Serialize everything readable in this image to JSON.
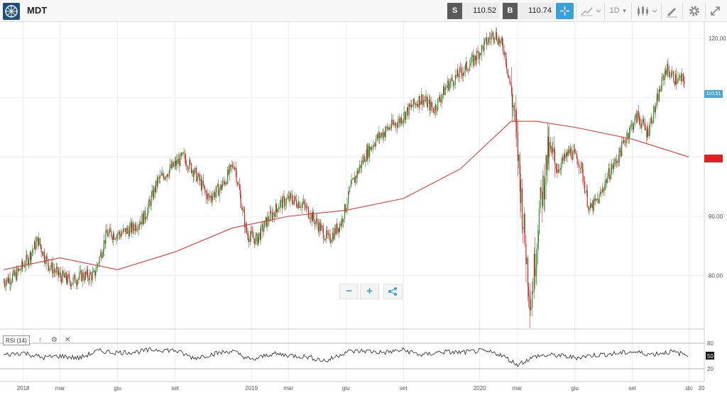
{
  "header": {
    "symbol": "MDT",
    "sell_label": "S",
    "sell_price": "110.52",
    "buy_label": "B",
    "buy_price": "110.74",
    "timeframe": "1D",
    "logo_icon": "company-logo-icon",
    "icons": [
      "crosshair-icon",
      "chart-type-icon",
      "candlestick-icon",
      "draw-icon",
      "gear-icon",
      "expand-icon"
    ]
  },
  "chart_data": {
    "type": "candlestick",
    "series": [
      {
        "name": "price",
        "kind": "candlestick",
        "color_up": "#2e8b2e",
        "color_down": "#c62828"
      },
      {
        "name": "moving-average",
        "kind": "line",
        "color": "#e53935"
      }
    ],
    "y_ticks": [
      "120,00",
      "90,00",
      "80,00"
    ],
    "ylim": [
      73,
      122
    ],
    "x_ticks": [
      "2018",
      "mar",
      "giu",
      "set",
      "2019",
      "mar",
      "giu",
      "set",
      "2020",
      "mar",
      "giu",
      "set",
      "dic",
      "20"
    ],
    "price_path": [
      [
        "2017-12-01",
        79
      ],
      [
        "2017-12-20",
        80
      ],
      [
        "2018-01-10",
        83
      ],
      [
        "2018-01-25",
        86
      ],
      [
        "2018-02-10",
        82
      ],
      [
        "2018-02-28",
        80
      ],
      [
        "2018-03-20",
        79
      ],
      [
        "2018-04-05",
        80
      ],
      [
        "2018-04-25",
        80
      ],
      [
        "2018-05-15",
        87
      ],
      [
        "2018-06-05",
        87
      ],
      [
        "2018-06-25",
        88
      ],
      [
        "2018-07-15",
        90
      ],
      [
        "2018-08-05",
        96
      ],
      [
        "2018-08-25",
        98
      ],
      [
        "2018-09-15",
        100
      ],
      [
        "2018-10-05",
        97
      ],
      [
        "2018-10-25",
        93
      ],
      [
        "2018-11-15",
        95
      ],
      [
        "2018-12-05",
        99
      ],
      [
        "2018-12-25",
        87
      ],
      [
        "2019-01-10",
        86
      ],
      [
        "2019-01-25",
        89
      ],
      [
        "2019-02-15",
        92
      ],
      [
        "2019-03-05",
        93
      ],
      [
        "2019-03-25",
        92
      ],
      [
        "2019-04-15",
        89
      ],
      [
        "2019-05-05",
        86
      ],
      [
        "2019-05-25",
        89
      ],
      [
        "2019-06-10",
        95
      ],
      [
        "2019-07-01",
        100
      ],
      [
        "2019-07-20",
        103
      ],
      [
        "2019-08-10",
        105
      ],
      [
        "2019-08-25",
        106
      ],
      [
        "2019-09-10",
        108
      ],
      [
        "2019-09-30",
        110
      ],
      [
        "2019-10-20",
        108
      ],
      [
        "2019-11-10",
        112
      ],
      [
        "2019-11-30",
        114
      ],
      [
        "2019-12-20",
        116
      ],
      [
        "2020-01-10",
        119
      ],
      [
        "2020-01-25",
        121
      ],
      [
        "2020-02-10",
        118
      ],
      [
        "2020-02-25",
        108
      ],
      [
        "2020-03-05",
        97
      ],
      [
        "2020-03-15",
        84
      ],
      [
        "2020-03-23",
        75
      ],
      [
        "2020-04-05",
        90
      ],
      [
        "2020-04-20",
        101
      ],
      [
        "2020-05-05",
        98
      ],
      [
        "2020-05-25",
        101
      ],
      [
        "2020-06-10",
        99
      ],
      [
        "2020-06-25",
        91
      ],
      [
        "2020-07-10",
        93
      ],
      [
        "2020-07-25",
        97
      ],
      [
        "2020-08-10",
        100
      ],
      [
        "2020-08-25",
        104
      ],
      [
        "2020-09-10",
        107
      ],
      [
        "2020-09-25",
        104
      ],
      [
        "2020-10-10",
        109
      ],
      [
        "2020-10-25",
        115
      ],
      [
        "2020-11-10",
        113
      ],
      [
        "2020-11-25",
        113
      ]
    ],
    "ma_path": [
      [
        "2017-12-01",
        81
      ],
      [
        "2018-03-01",
        83
      ],
      [
        "2018-06-01",
        81
      ],
      [
        "2018-09-01",
        84
      ],
      [
        "2018-12-01",
        88
      ],
      [
        "2019-03-01",
        90
      ],
      [
        "2019-06-01",
        91
      ],
      [
        "2019-09-01",
        93
      ],
      [
        "2019-12-01",
        98
      ],
      [
        "2020-02-20",
        106
      ],
      [
        "2020-04-01",
        106
      ],
      [
        "2020-06-01",
        105
      ],
      [
        "2020-09-01",
        103
      ],
      [
        "2020-11-30",
        100
      ]
    ],
    "last_price_tag": "110,51",
    "ma_tag": ""
  },
  "indicator": {
    "label": "RSI (14)",
    "levels": [
      "80",
      "50",
      "20"
    ],
    "controls": [
      "arrow-up-icon",
      "gear-icon",
      "close-icon"
    ],
    "values": [
      [
        "2017-12-01",
        52
      ],
      [
        "2018-01-01",
        58
      ],
      [
        "2018-02-01",
        46
      ],
      [
        "2018-03-01",
        50
      ],
      [
        "2018-04-01",
        45
      ],
      [
        "2018-05-01",
        62
      ],
      [
        "2018-06-01",
        58
      ],
      [
        "2018-07-01",
        60
      ],
      [
        "2018-08-01",
        65
      ],
      [
        "2018-09-01",
        63
      ],
      [
        "2018-10-01",
        45
      ],
      [
        "2018-11-01",
        55
      ],
      [
        "2018-12-01",
        62
      ],
      [
        "2019-01-01",
        40
      ],
      [
        "2019-02-01",
        55
      ],
      [
        "2019-03-01",
        52
      ],
      [
        "2019-04-01",
        48
      ],
      [
        "2019-05-01",
        38
      ],
      [
        "2019-06-01",
        60
      ],
      [
        "2019-07-01",
        62
      ],
      [
        "2019-08-01",
        58
      ],
      [
        "2019-09-01",
        64
      ],
      [
        "2019-10-01",
        52
      ],
      [
        "2019-11-01",
        60
      ],
      [
        "2019-12-01",
        58
      ],
      [
        "2020-01-01",
        62
      ],
      [
        "2020-02-01",
        55
      ],
      [
        "2020-03-01",
        30
      ],
      [
        "2020-04-01",
        50
      ],
      [
        "2020-05-01",
        52
      ],
      [
        "2020-06-01",
        46
      ],
      [
        "2020-07-01",
        52
      ],
      [
        "2020-08-01",
        55
      ],
      [
        "2020-09-01",
        60
      ],
      [
        "2020-10-01",
        54
      ],
      [
        "2020-11-01",
        60
      ],
      [
        "2020-11-30",
        52
      ]
    ]
  },
  "zoom": {
    "minus": "−",
    "plus": "+",
    "share_icon": "share-icon"
  }
}
